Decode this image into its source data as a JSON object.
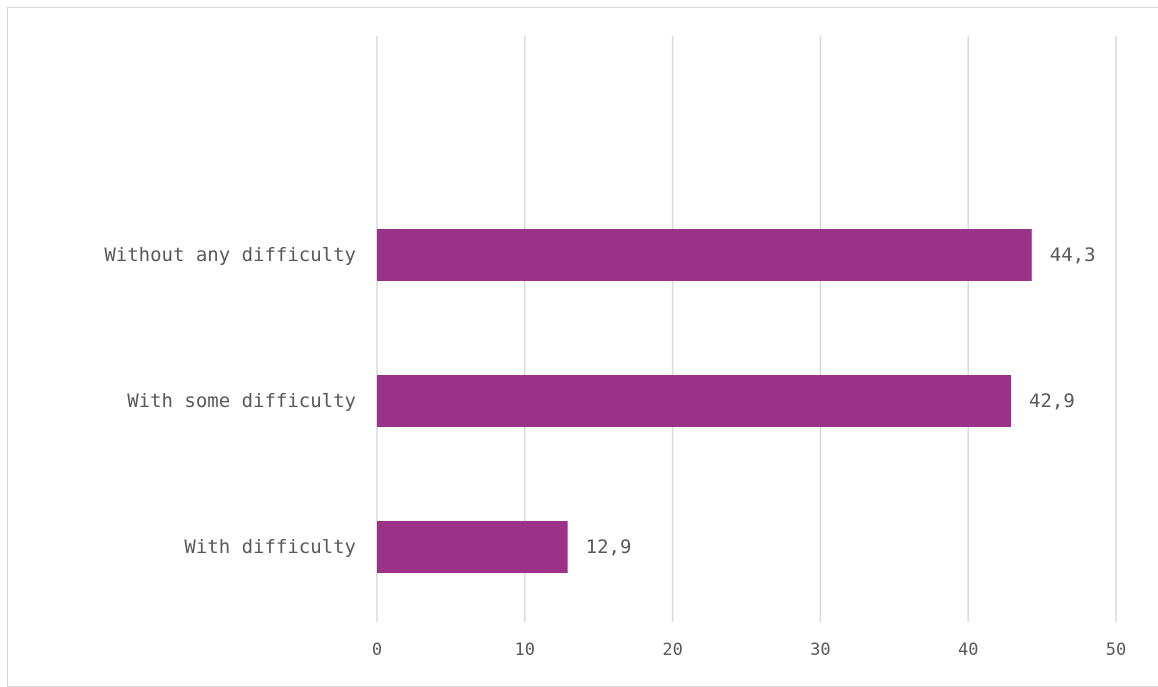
{
  "chart_data": {
    "type": "bar",
    "orientation": "horizontal",
    "categories": [
      "Without any difficulty",
      "With some difficulty",
      "With difficulty"
    ],
    "values": [
      44.3,
      42.9,
      12.9
    ],
    "value_labels": [
      "44,3",
      "42,9",
      "12,9"
    ],
    "xlim": [
      0,
      50
    ],
    "xticks": [
      0,
      10,
      20,
      30,
      40,
      50
    ],
    "grid": "vertical",
    "bar_color": "#9B3288",
    "grid_color": "#d9d9d9",
    "text_color": "#595959"
  }
}
